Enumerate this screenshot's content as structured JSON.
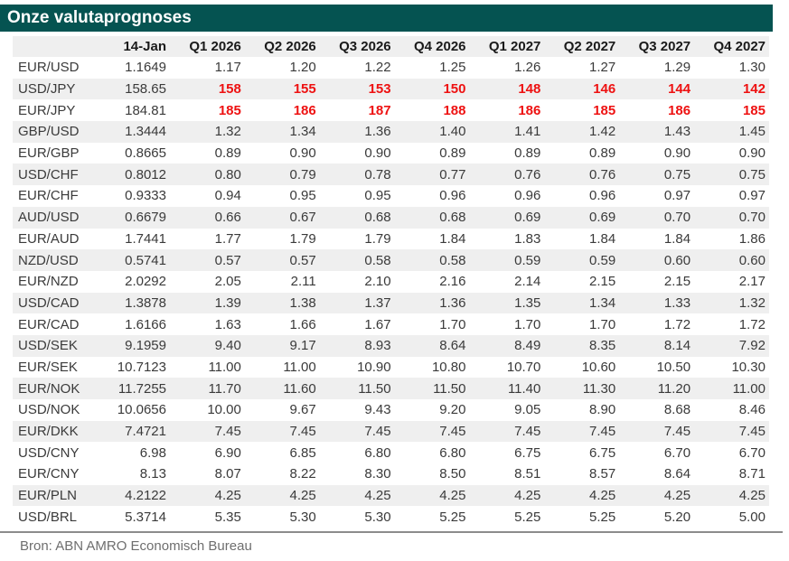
{
  "title": "Onze valutaprognoses",
  "source": "Bron: ABN AMRO Economisch Bureau",
  "colors": {
    "title_bg": "#055351",
    "title_fg": "#ffffff",
    "stripe": "#efefef",
    "header_bg": "#efefef",
    "text": "#3a3a3a",
    "header_text": "#1a1a1a",
    "red": "#ee1111",
    "rule": "#8c8c8c",
    "footer_text": "#6e6e6e"
  },
  "table": {
    "columns": [
      "",
      "14-Jan",
      "Q1 2026",
      "Q2 2026",
      "Q3 2026",
      "Q4 2026",
      "Q1 2027",
      "Q2 2027",
      "Q3 2027",
      "Q4 2027"
    ],
    "rows": [
      {
        "pair": "EUR/USD",
        "spot": "1.1649",
        "forecasts": [
          "1.17",
          "1.20",
          "1.22",
          "1.25",
          "1.26",
          "1.27",
          "1.29",
          "1.30"
        ],
        "forecast_red": false,
        "striped": false
      },
      {
        "pair": "USD/JPY",
        "spot": "158.65",
        "forecasts": [
          "158",
          "155",
          "153",
          "150",
          "148",
          "146",
          "144",
          "142"
        ],
        "forecast_red": true,
        "striped": true
      },
      {
        "pair": "EUR/JPY",
        "spot": "184.81",
        "forecasts": [
          "185",
          "186",
          "187",
          "188",
          "186",
          "185",
          "186",
          "185"
        ],
        "forecast_red": true,
        "striped": false
      },
      {
        "pair": "GBP/USD",
        "spot": "1.3444",
        "forecasts": [
          "1.32",
          "1.34",
          "1.36",
          "1.40",
          "1.41",
          "1.42",
          "1.43",
          "1.45"
        ],
        "forecast_red": false,
        "striped": true
      },
      {
        "pair": "EUR/GBP",
        "spot": "0.8665",
        "forecasts": [
          "0.89",
          "0.90",
          "0.90",
          "0.89",
          "0.89",
          "0.89",
          "0.90",
          "0.90"
        ],
        "forecast_red": false,
        "striped": false
      },
      {
        "pair": "USD/CHF",
        "spot": "0.8012",
        "forecasts": [
          "0.80",
          "0.79",
          "0.78",
          "0.77",
          "0.76",
          "0.76",
          "0.75",
          "0.75"
        ],
        "forecast_red": false,
        "striped": true
      },
      {
        "pair": "EUR/CHF",
        "spot": "0.9333",
        "forecasts": [
          "0.94",
          "0.95",
          "0.95",
          "0.96",
          "0.96",
          "0.96",
          "0.97",
          "0.97"
        ],
        "forecast_red": false,
        "striped": false
      },
      {
        "pair": "AUD/USD",
        "spot": "0.6679",
        "forecasts": [
          "0.66",
          "0.67",
          "0.68",
          "0.68",
          "0.69",
          "0.69",
          "0.70",
          "0.70"
        ],
        "forecast_red": false,
        "striped": true
      },
      {
        "pair": "EUR/AUD",
        "spot": "1.7441",
        "forecasts": [
          "1.77",
          "1.79",
          "1.79",
          "1.84",
          "1.83",
          "1.84",
          "1.84",
          "1.86"
        ],
        "forecast_red": false,
        "striped": false
      },
      {
        "pair": "NZD/USD",
        "spot": "0.5741",
        "forecasts": [
          "0.57",
          "0.57",
          "0.58",
          "0.58",
          "0.59",
          "0.59",
          "0.60",
          "0.60"
        ],
        "forecast_red": false,
        "striped": true
      },
      {
        "pair": "EUR/NZD",
        "spot": "2.0292",
        "forecasts": [
          "2.05",
          "2.11",
          "2.10",
          "2.16",
          "2.14",
          "2.15",
          "2.15",
          "2.17"
        ],
        "forecast_red": false,
        "striped": false
      },
      {
        "pair": "USD/CAD",
        "spot": "1.3878",
        "forecasts": [
          "1.39",
          "1.38",
          "1.37",
          "1.36",
          "1.35",
          "1.34",
          "1.33",
          "1.32"
        ],
        "forecast_red": false,
        "striped": true
      },
      {
        "pair": "EUR/CAD",
        "spot": "1.6166",
        "forecasts": [
          "1.63",
          "1.66",
          "1.67",
          "1.70",
          "1.70",
          "1.70",
          "1.72",
          "1.72"
        ],
        "forecast_red": false,
        "striped": false
      },
      {
        "pair": "USD/SEK",
        "spot": "9.1959",
        "forecasts": [
          "9.40",
          "9.17",
          "8.93",
          "8.64",
          "8.49",
          "8.35",
          "8.14",
          "7.92"
        ],
        "forecast_red": false,
        "striped": true
      },
      {
        "pair": "EUR/SEK",
        "spot": "10.7123",
        "forecasts": [
          "11.00",
          "11.00",
          "10.90",
          "10.80",
          "10.70",
          "10.60",
          "10.50",
          "10.30"
        ],
        "forecast_red": false,
        "striped": false
      },
      {
        "pair": "EUR/NOK",
        "spot": "11.7255",
        "forecasts": [
          "11.70",
          "11.60",
          "11.50",
          "11.50",
          "11.40",
          "11.30",
          "11.20",
          "11.00"
        ],
        "forecast_red": false,
        "striped": true
      },
      {
        "pair": "USD/NOK",
        "spot": "10.0656",
        "forecasts": [
          "10.00",
          "9.67",
          "9.43",
          "9.20",
          "9.05",
          "8.90",
          "8.68",
          "8.46"
        ],
        "forecast_red": false,
        "striped": false
      },
      {
        "pair": "EUR/DKK",
        "spot": "7.4721",
        "forecasts": [
          "7.45",
          "7.45",
          "7.45",
          "7.45",
          "7.45",
          "7.45",
          "7.45",
          "7.45"
        ],
        "forecast_red": false,
        "striped": true
      },
      {
        "pair": "USD/CNY",
        "spot": "6.98",
        "forecasts": [
          "6.90",
          "6.85",
          "6.80",
          "6.80",
          "6.75",
          "6.75",
          "6.70",
          "6.70"
        ],
        "forecast_red": false,
        "striped": false
      },
      {
        "pair": "EUR/CNY",
        "spot": "8.13",
        "forecasts": [
          "8.07",
          "8.22",
          "8.30",
          "8.50",
          "8.51",
          "8.57",
          "8.64",
          "8.71"
        ],
        "forecast_red": false,
        "striped": false
      },
      {
        "pair": "EUR/PLN",
        "spot": "4.2122",
        "forecasts": [
          "4.25",
          "4.25",
          "4.25",
          "4.25",
          "4.25",
          "4.25",
          "4.25",
          "4.25"
        ],
        "forecast_red": false,
        "striped": true
      },
      {
        "pair": "USD/BRL",
        "spot": "5.3714",
        "forecasts": [
          "5.35",
          "5.30",
          "5.30",
          "5.25",
          "5.25",
          "5.25",
          "5.20",
          "5.00"
        ],
        "forecast_red": false,
        "striped": false
      }
    ]
  }
}
